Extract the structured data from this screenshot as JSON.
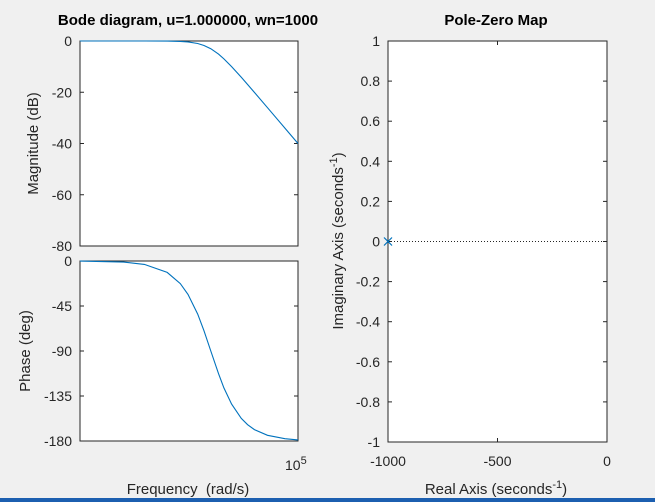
{
  "colors": {
    "line": "#0072BD",
    "axes": "#262626",
    "background": "#f0f0f0",
    "plot_bg": "#ffffff",
    "accent_bar": "#1c5fb0"
  },
  "chart_data": [
    {
      "id": "bode-magnitude",
      "type": "line",
      "title": "Bode diagram, u=1.000000, wn=1000",
      "ylabel": "Magnitude (dB)",
      "xscale": "log",
      "xlim": [
        1,
        100000
      ],
      "ylim": [
        -80,
        0
      ],
      "yticks": [
        0,
        -20,
        -40,
        -60,
        -80
      ],
      "ytick_labels": [
        "0",
        "-20",
        "-40",
        "-60",
        "-80"
      ],
      "series": [
        {
          "x": [
            1,
            10,
            30,
            100,
            200,
            300,
            500,
            700,
            1000,
            1500,
            2000,
            3000,
            5000,
            7000,
            10000,
            20000,
            50000,
            100000
          ],
          "y": [
            0,
            0,
            0,
            -0.04,
            -0.17,
            -0.37,
            -0.97,
            -1.74,
            -3.01,
            -5.12,
            -6.99,
            -10.0,
            -14.15,
            -16.99,
            -20.04,
            -26.02,
            -33.98,
            -40.0
          ]
        }
      ]
    },
    {
      "id": "bode-phase",
      "type": "line",
      "ylabel": "Phase (deg)",
      "xlabel": "Frequency  (rad/s)",
      "xscale": "log",
      "xlim": [
        1,
        100000
      ],
      "ylim": [
        -180,
        0
      ],
      "xtick_labels": [
        "10",
        "5"
      ],
      "yticks": [
        0,
        -45,
        -90,
        -135,
        -180
      ],
      "ytick_labels": [
        "0",
        "-45",
        "-90",
        "-135",
        "-180"
      ],
      "series": [
        {
          "x": [
            1,
            10,
            30,
            100,
            200,
            300,
            500,
            700,
            1000,
            1500,
            2000,
            3000,
            5000,
            7000,
            10000,
            20000,
            50000,
            100000
          ],
          "y": [
            -0.1,
            -1.1,
            -3.4,
            -11.4,
            -22.6,
            -33.4,
            -53.1,
            -69.8,
            -90.0,
            -112.6,
            -126.9,
            -143.1,
            -157.4,
            -163.7,
            -168.6,
            -174.3,
            -177.7,
            -178.9
          ]
        }
      ]
    },
    {
      "id": "pole-zero",
      "type": "scatter",
      "title": "Pole-Zero Map",
      "xlabel": "Real Axis (seconds",
      "xlabel_sup": "-1",
      "xlabel_end": ")",
      "ylabel": "Imaginary Axis (seconds",
      "ylabel_sup": "-1",
      "ylabel_end": ")",
      "xlim": [
        -1000,
        0
      ],
      "ylim": [
        -1,
        1
      ],
      "xticks": [
        -1000,
        -500,
        0
      ],
      "xtick_labels": [
        "-1000",
        "-500",
        "0"
      ],
      "yticks": [
        1,
        0.8,
        0.6,
        0.4,
        0.2,
        0,
        -0.2,
        -0.4,
        -0.6,
        -0.8,
        -1
      ],
      "ytick_labels": [
        "1",
        "0.8",
        "0.6",
        "0.4",
        "0.2",
        "0",
        "-0.2",
        "-0.4",
        "-0.6",
        "-0.8",
        "-1"
      ],
      "poles": [
        {
          "x": -1000,
          "y": 0
        }
      ],
      "zero_line": "dotted"
    }
  ]
}
